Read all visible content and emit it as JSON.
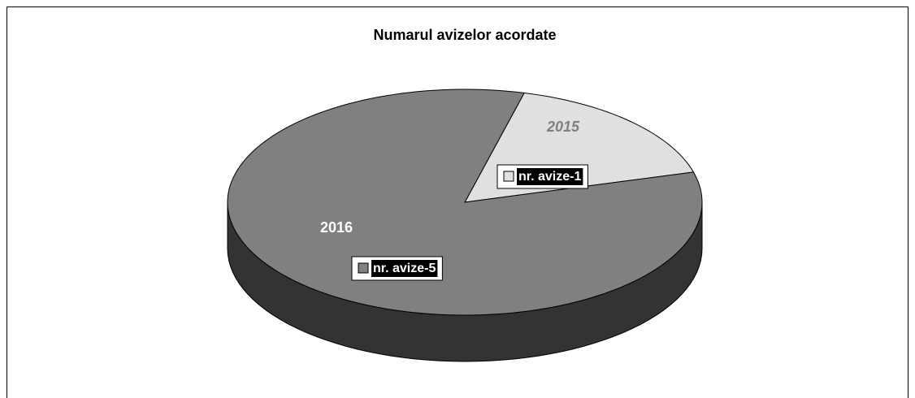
{
  "chart_data": {
    "type": "pie",
    "title": "Numarul avizelor acordate",
    "categories": [
      "2015",
      "2016"
    ],
    "values": [
      1,
      5
    ],
    "value_labels": [
      "nr. avize-1",
      "nr. avize-5"
    ],
    "colors": [
      "#e0e0e0",
      "#808080"
    ]
  }
}
